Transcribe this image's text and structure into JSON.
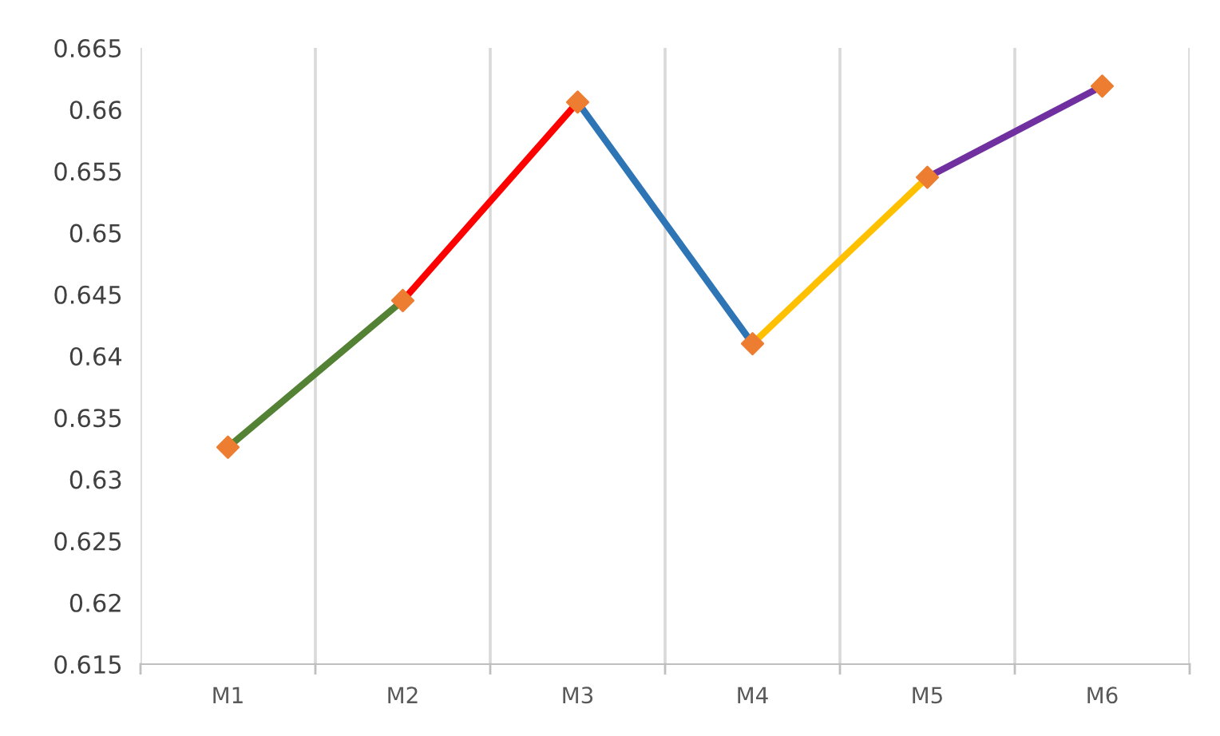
{
  "chart_data": {
    "type": "line",
    "categories": [
      "M1",
      "M2",
      "M3",
      "M4",
      "M5",
      "M6"
    ],
    "series": [
      {
        "color": "#548235",
        "values": [
          0.6326,
          0.6445,
          null,
          null,
          null,
          null
        ],
        "marker": "none"
      },
      {
        "color": "#ff0000",
        "values": [
          null,
          0.6445,
          0.6606,
          null,
          null,
          null
        ],
        "marker": "none"
      },
      {
        "color": "#2e75b6",
        "values": [
          null,
          null,
          0.6606,
          0.641,
          null,
          null
        ],
        "marker": "none"
      },
      {
        "color": "#ffc000",
        "values": [
          null,
          null,
          null,
          0.641,
          0.6545,
          null
        ],
        "marker": "none"
      },
      {
        "color": "#7030a0",
        "values": [
          null,
          null,
          null,
          null,
          0.6545,
          0.6619
        ],
        "marker": "none"
      },
      {
        "type": "scatter",
        "color": "#ed7d31",
        "values": [
          0.6326,
          0.6445,
          0.6606,
          0.641,
          0.6545,
          0.6619
        ],
        "marker": "diamond"
      }
    ],
    "ylim": [
      0.615,
      0.665
    ],
    "yticks": [
      0.615,
      0.62,
      0.625,
      0.63,
      0.635,
      0.64,
      0.645,
      0.65,
      0.655,
      0.66,
      0.665
    ],
    "grid": "x",
    "line_style": "solid"
  }
}
